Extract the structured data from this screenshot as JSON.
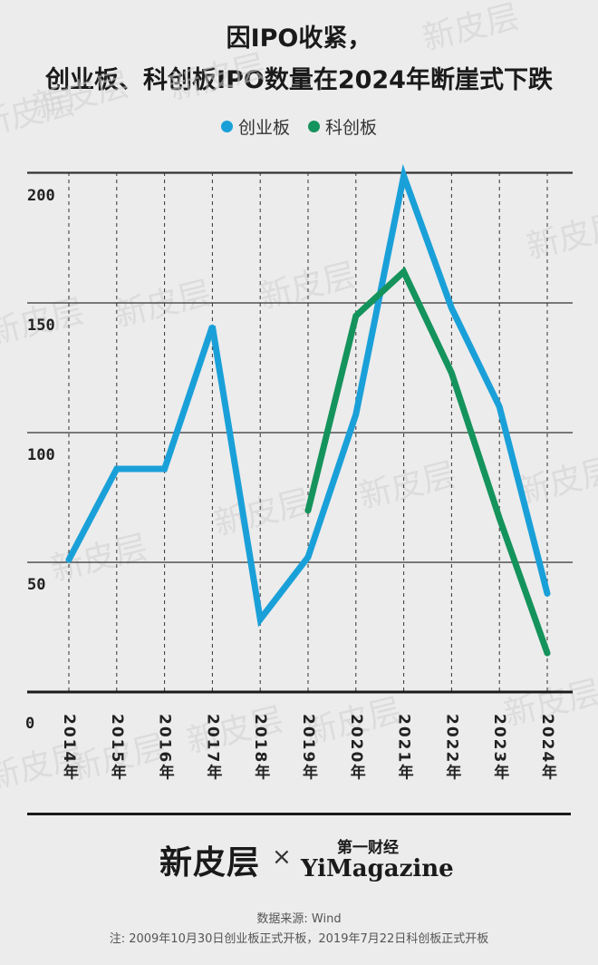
{
  "title_line1": "因IPO收紧，",
  "title_line2": "创业板、科创板IPO数量在2024年断崖式下跌",
  "watermark_text": "新皮层",
  "chart_data": {
    "type": "line",
    "categories": [
      "2014年",
      "2015年",
      "2016年",
      "2017年",
      "2018年",
      "2019年",
      "2020年",
      "2021年",
      "2022年",
      "2023年",
      "2024年"
    ],
    "series": [
      {
        "name": "创业板",
        "color": "#1aa0d8",
        "values": [
          51,
          86,
          86,
          141,
          28,
          52,
          107,
          199,
          148,
          110,
          38
        ]
      },
      {
        "name": "科创板",
        "color": "#15935c",
        "values": [
          null,
          null,
          null,
          null,
          null,
          70,
          145,
          162,
          123,
          67,
          15
        ]
      }
    ],
    "y_ticks": [
      50,
      100,
      150,
      200
    ],
    "y_zero_label": "0",
    "ylim": [
      0,
      200
    ],
    "grid": true,
    "legend": "top-center"
  },
  "footer": {
    "logo_left": "新皮层",
    "logo_times": "×",
    "logo_right_cn": "第一财经",
    "logo_right_en": "YiMagazine",
    "source": "数据来源: Wind",
    "note": "注: 2009年10月30日创业板正式开板，2019年7月22日科创板正式开板"
  }
}
